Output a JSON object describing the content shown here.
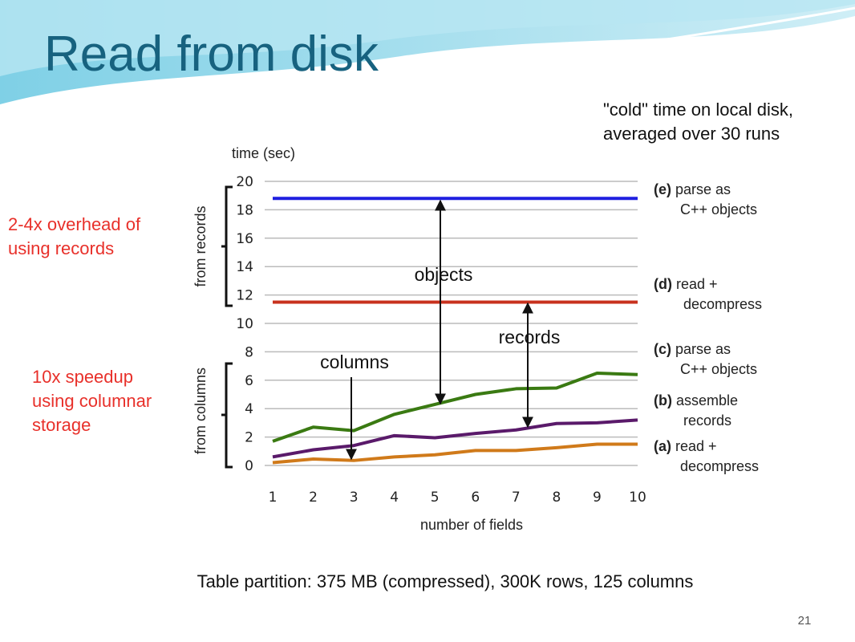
{
  "chart_data": {
    "type": "line",
    "title": "Read from disk",
    "y_label": "time (sec)",
    "x_label": "number of fields",
    "x": [
      1,
      2,
      3,
      4,
      5,
      6,
      7,
      8,
      9,
      10
    ],
    "xlim": [
      1,
      10
    ],
    "xticks": [
      1,
      2,
      3,
      4,
      5,
      6,
      7,
      8,
      9,
      10
    ],
    "ylim": [
      0,
      20
    ],
    "yticks": [
      0,
      2,
      4,
      6,
      8,
      10,
      12,
      14,
      16,
      18,
      20
    ],
    "grid": true,
    "series": [
      {
        "tag": "(e)",
        "name_lines": [
          "parse as",
          "C++ objects"
        ],
        "color": "#1f1fe0",
        "values": [
          18.8,
          18.8,
          18.8,
          18.8,
          18.8,
          18.8,
          18.8,
          18.8,
          18.8,
          18.8
        ]
      },
      {
        "tag": "(d)",
        "name_lines": [
          "read +",
          "decompress"
        ],
        "color": "#c8321e",
        "values": [
          11.5,
          11.5,
          11.5,
          11.5,
          11.5,
          11.5,
          11.5,
          11.5,
          11.5,
          11.5
        ]
      },
      {
        "tag": "(c)",
        "name_lines": [
          "parse as",
          "C++ objects"
        ],
        "color": "#3a7a12",
        "values": [
          1.7,
          2.7,
          2.45,
          3.6,
          4.3,
          5.0,
          5.4,
          5.45,
          6.5,
          6.4
        ]
      },
      {
        "tag": "(b)",
        "name_lines": [
          "assemble",
          "records"
        ],
        "color": "#5a1a6a",
        "values": [
          0.6,
          1.1,
          1.4,
          2.1,
          1.95,
          2.25,
          2.5,
          2.95,
          3.0,
          3.2
        ]
      },
      {
        "tag": "(a)",
        "name_lines": [
          "read +",
          "decompress"
        ],
        "color": "#d07a1a",
        "values": [
          0.2,
          0.45,
          0.35,
          0.6,
          0.75,
          1.05,
          1.05,
          1.25,
          1.5,
          1.5
        ]
      }
    ],
    "annotations": {
      "note_lines": [
        "\"cold\" time on local disk,",
        "averaged over 30 runs"
      ],
      "from_records": "from records",
      "from_columns": "from columns",
      "objects": "objects",
      "records": "records",
      "columns": "columns",
      "overhead_lines": [
        "2-4x overhead of",
        "using records"
      ],
      "speedup_lines": [
        "10x speedup",
        "using columnar",
        "storage"
      ],
      "footer": "Table partition: 375 MB (compressed), 300K rows, 125 columns",
      "page_number": "21"
    }
  }
}
